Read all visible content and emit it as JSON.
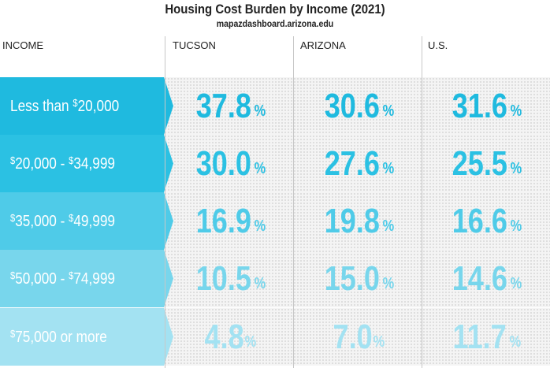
{
  "title": "Housing Cost Burden by Income (2021)",
  "subtitle": "mapazdashboard.arizona.edu",
  "headers": [
    "INCOME",
    "TUCSON",
    "ARIZONA",
    "U.S."
  ],
  "percent_sign": "%",
  "colors": [
    "#1fbadf",
    "#2bc1e3",
    "#4fcbe8",
    "#78d6ec",
    "#a3e2f2"
  ],
  "chart_data": {
    "type": "table",
    "title": "Housing Cost Burden by Income (2021)",
    "subtitle": "mapazdashboard.arizona.edu",
    "columns": [
      "TUCSON",
      "ARIZONA",
      "U.S."
    ],
    "rows": [
      {
        "label": "Less than $20,000",
        "values": [
          "37.8",
          "30.6",
          "31.6"
        ]
      },
      {
        "label": "$20,000 - $34,999",
        "values": [
          "30.0",
          "27.6",
          "25.5"
        ]
      },
      {
        "label": "$35,000 - $49,999",
        "values": [
          "16.9",
          "19.8",
          "16.6"
        ]
      },
      {
        "label": "$50,000 - $74,999",
        "values": [
          "10.5",
          "15.0",
          "14.6"
        ]
      },
      {
        "label": "$75,000 or more",
        "values": [
          "4.8",
          "7.0",
          "11.7"
        ]
      }
    ],
    "unit": "%"
  }
}
